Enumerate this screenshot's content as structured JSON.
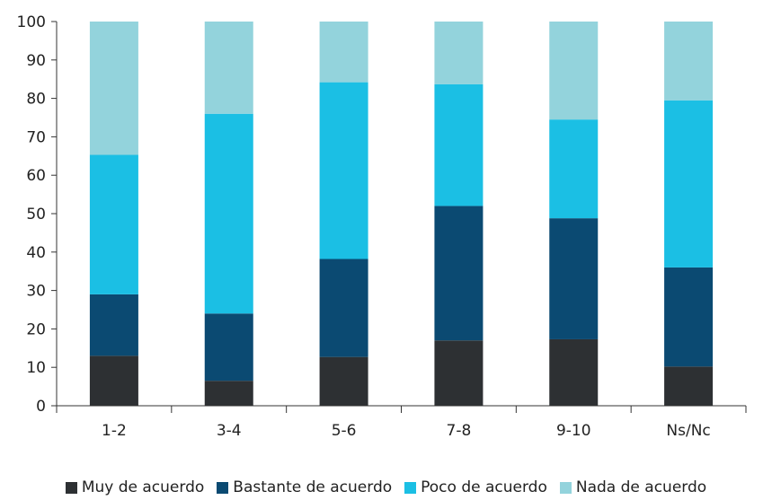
{
  "chart_data": {
    "type": "bar",
    "stacked": true,
    "categories": [
      "1-2",
      "3-4",
      "5-6",
      "7-8",
      "9-10",
      "Ns/Nc"
    ],
    "ylim": [
      0,
      100
    ],
    "yticks": [
      0,
      10,
      20,
      30,
      40,
      50,
      60,
      70,
      80,
      90,
      100
    ],
    "grid": false,
    "legend_position": "bottom",
    "series": [
      {
        "name": "Muy de acuerdo",
        "color": "#2d3033",
        "values": [
          13.0,
          6.5,
          12.7,
          17.0,
          17.3,
          10.2
        ]
      },
      {
        "name": "Bastante de acuerdo",
        "color": "#0b4a72",
        "values": [
          16.0,
          17.5,
          25.5,
          35.0,
          31.5,
          25.8
        ]
      },
      {
        "name": "Poco de acuerdo",
        "color": "#1bbfe4",
        "values": [
          36.3,
          52.0,
          46.0,
          31.7,
          25.7,
          43.5
        ]
      },
      {
        "name": "Nada de acuerdo",
        "color": "#93d3dc",
        "values": [
          34.7,
          24.0,
          15.8,
          16.3,
          25.5,
          20.5
        ]
      }
    ]
  }
}
